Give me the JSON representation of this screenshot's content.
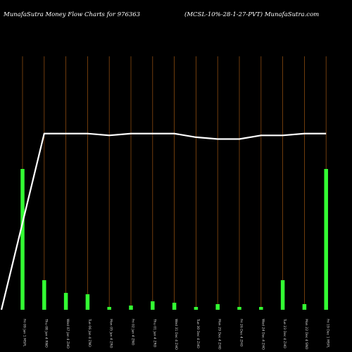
{
  "header": {
    "left": "MunafaSutra  Money Flow  Charts for 976363",
    "right": "(MCSL-10%-28-1-27-PVT) MunafaSutra.com"
  },
  "colors": {
    "background": "#000000",
    "bar": "#33ff33",
    "vline": "#8a4a10",
    "line": "#ffffff",
    "text": "#ffffff"
  },
  "chart_data": {
    "type": "bar",
    "categories": [
      "Fri 09 Jan 2026",
      "Thu 08 Jan 2026",
      "Wed 07 Jan 2026",
      "Tue 06 Jan 2026",
      "Mon 05 Jan 2026",
      "Fri 02 Jan 2026",
      "Thu 01 Jan 2026",
      "Wed 31 Dec 2025",
      "Tue 30 Dec 2025",
      "Mon 29 Dec 2025",
      "Fri 26 Dec 2025",
      "Wed 24 Dec 2025",
      "Tue 23 Dec 2025",
      "Mon 22 Dec 2025",
      "Fri 19 Dec 2025"
    ],
    "tick_labels": [
      "Fri 09 Jan 1 MSPL",
      "Thu 08 Jan 4 RNO",
      "Wed 07 Jan 4 ZHO",
      "Tue 06 Jan 4 ZNO",
      "Mon 05 Jan 4 ZRO",
      "Fri 02 Jan 4 ZNO",
      "Thu 01 Jan 4 ZRO",
      "Wed 31 Dec 4 ZHO",
      "Tue 30 Dec 4 ZHO",
      "Mon 29 Dec 4 ZHO",
      "Fri 26 Dec 4 ZHO",
      "Wed 24 Dec 4 ZHO",
      "Tue 23 Dec 4 ZHO",
      "Mon 22 Dec 4 SNO",
      "Fri 19 Dec 1 MSPL"
    ],
    "series": [
      {
        "type": "bar",
        "values": [
          100,
          21,
          12,
          11,
          2,
          3,
          6,
          5,
          2,
          4,
          2,
          2,
          21,
          4,
          100
        ]
      },
      {
        "type": "line",
        "values": [
          0,
          97,
          97,
          97,
          96,
          97,
          97,
          97,
          95,
          94,
          94,
          96,
          96,
          97,
          97
        ]
      }
    ],
    "ylim": [
      0,
      100
    ],
    "line_ylim": [
      0,
      100
    ],
    "grid": "vertical"
  }
}
